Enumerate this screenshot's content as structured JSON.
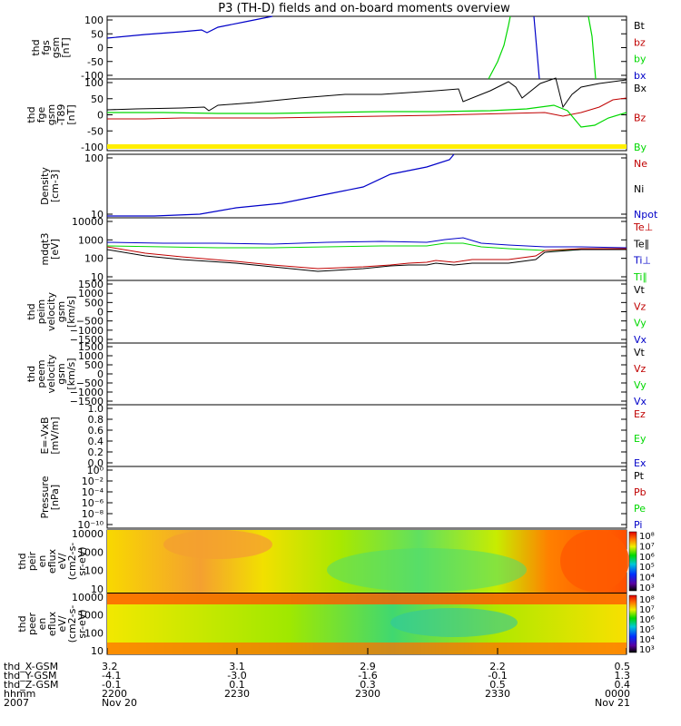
{
  "title": "P3 (TH-D) fields and on-board moments overview",
  "colors": {
    "black": "#000000",
    "red": "#c00000",
    "green": "#00d800",
    "blue": "#0000c8",
    "yellow": "#ffee00"
  },
  "chart_data": {
    "type": "line",
    "panels": [
      {
        "ylabel": [
          "thd",
          "fgs",
          "gsm",
          "[nT]"
        ],
        "yticks": [
          "100",
          "50",
          "0",
          "-50",
          "-100"
        ],
        "legend": [
          {
            "name": "Bt",
            "color": "black"
          },
          {
            "name": "bz",
            "color": "red"
          },
          {
            "name": "by",
            "color": "green"
          },
          {
            "name": "bx",
            "color": "blue"
          }
        ]
      },
      {
        "ylabel": [
          "thd",
          "fge",
          "gsm",
          "-T89",
          "[nT]"
        ],
        "yticks": [
          "100",
          "50",
          "0",
          "-50",
          "-100"
        ],
        "legend": [
          {
            "name": "Bx",
            "color": "black"
          },
          {
            "name": "Bz",
            "color": "red"
          },
          {
            "name": "By",
            "color": "green"
          }
        ]
      },
      {
        "ylabel": [
          "Density",
          "[cm-3]"
        ],
        "yticks": [
          "100",
          "10"
        ],
        "legend": [
          {
            "name": "Ne",
            "color": "red"
          },
          {
            "name": "Ni",
            "color": "black"
          },
          {
            "name": "Npot",
            "color": "blue"
          }
        ]
      },
      {
        "ylabel": [
          "mdqt3",
          "[eV]"
        ],
        "yticks": [
          "10000",
          "1000",
          "100",
          "10"
        ],
        "legend": [
          {
            "name": "Te⊥",
            "color": "red"
          },
          {
            "name": "Te∥",
            "color": "black"
          },
          {
            "name": "Ti⊥",
            "color": "blue"
          },
          {
            "name": "Ti∥",
            "color": "green"
          }
        ]
      },
      {
        "ylabel": [
          "thd",
          "peim",
          "velocity",
          "gsm",
          "[km/s]"
        ],
        "yticks": [
          "1500",
          "1000",
          "500",
          "0",
          "−500",
          "−1000",
          "−1500"
        ],
        "legend": [
          {
            "name": "Vt",
            "color": "black"
          },
          {
            "name": "Vz",
            "color": "red"
          },
          {
            "name": "Vy",
            "color": "green"
          },
          {
            "name": "Vx",
            "color": "blue"
          }
        ]
      },
      {
        "ylabel": [
          "thd",
          "peem",
          "velocity",
          "gsm",
          "[km/s]"
        ],
        "yticks": [
          "1500",
          "1000",
          "500",
          "0",
          "−500",
          "−1000",
          "−1500"
        ],
        "legend": [
          {
            "name": "Vt",
            "color": "black"
          },
          {
            "name": "Vz",
            "color": "red"
          },
          {
            "name": "Vy",
            "color": "green"
          },
          {
            "name": "Vx",
            "color": "blue"
          }
        ]
      },
      {
        "ylabel": [
          "E=-VxB",
          "[mV/m]"
        ],
        "yticks": [
          "1.0",
          "0.8",
          "0.6",
          "0.4",
          "0.2",
          "0.0"
        ],
        "legend": [
          {
            "name": "Ez",
            "color": "red"
          },
          {
            "name": "Ey",
            "color": "green"
          },
          {
            "name": "Ex",
            "color": "blue"
          }
        ]
      },
      {
        "ylabel": [
          "Pressure",
          "[nPa]"
        ],
        "yticks": [
          "10⁰",
          "10⁻²",
          "10⁻⁴",
          "10⁻⁶",
          "10⁻⁸",
          "10⁻¹⁰"
        ],
        "legend": [
          {
            "name": "Pt",
            "color": "black"
          },
          {
            "name": "Pb",
            "color": "red"
          },
          {
            "name": "Pe",
            "color": "green"
          },
          {
            "name": "Pi",
            "color": "blue"
          }
        ]
      },
      {
        "ylabel": [
          "thd",
          "peir",
          "en",
          "eflux",
          "eV/",
          "(cm2-s-",
          "sr-eV)"
        ],
        "yticks": [
          "10000",
          "1000",
          "100",
          "10"
        ],
        "colorbar": [
          "10⁸",
          "10⁷",
          "10⁶",
          "10⁵",
          "10⁴",
          "10³"
        ]
      },
      {
        "ylabel": [
          "thd",
          "peer",
          "en",
          "eflux",
          "eV/",
          "(cm2-s-",
          "sr-eV)"
        ],
        "yticks": [
          "10000",
          "1000",
          "100",
          "10"
        ],
        "colorbar": [
          "10⁸",
          "10⁷",
          "10⁶",
          "10⁵",
          "10⁴",
          "10³"
        ]
      }
    ],
    "x_rows": [
      {
        "label": "thd_X-GSM",
        "values": [
          "3.2",
          "3.1",
          "2.9",
          "2.2",
          "0.5"
        ]
      },
      {
        "label": "thd_Y-GSM",
        "values": [
          "-4.1",
          "-3.0",
          "-1.6",
          "-0.1",
          "1.3"
        ]
      },
      {
        "label": "thd_Z-GSM",
        "values": [
          "-0.1",
          "0.1",
          "0.3",
          "0.5",
          "0.4"
        ]
      },
      {
        "label": "hhmm",
        "values": [
          "2200",
          "2230",
          "2300",
          "2330",
          "0000"
        ]
      },
      {
        "label": "2007",
        "values": [
          "Nov 20",
          "",
          "",
          "",
          "Nov 21"
        ]
      }
    ]
  }
}
